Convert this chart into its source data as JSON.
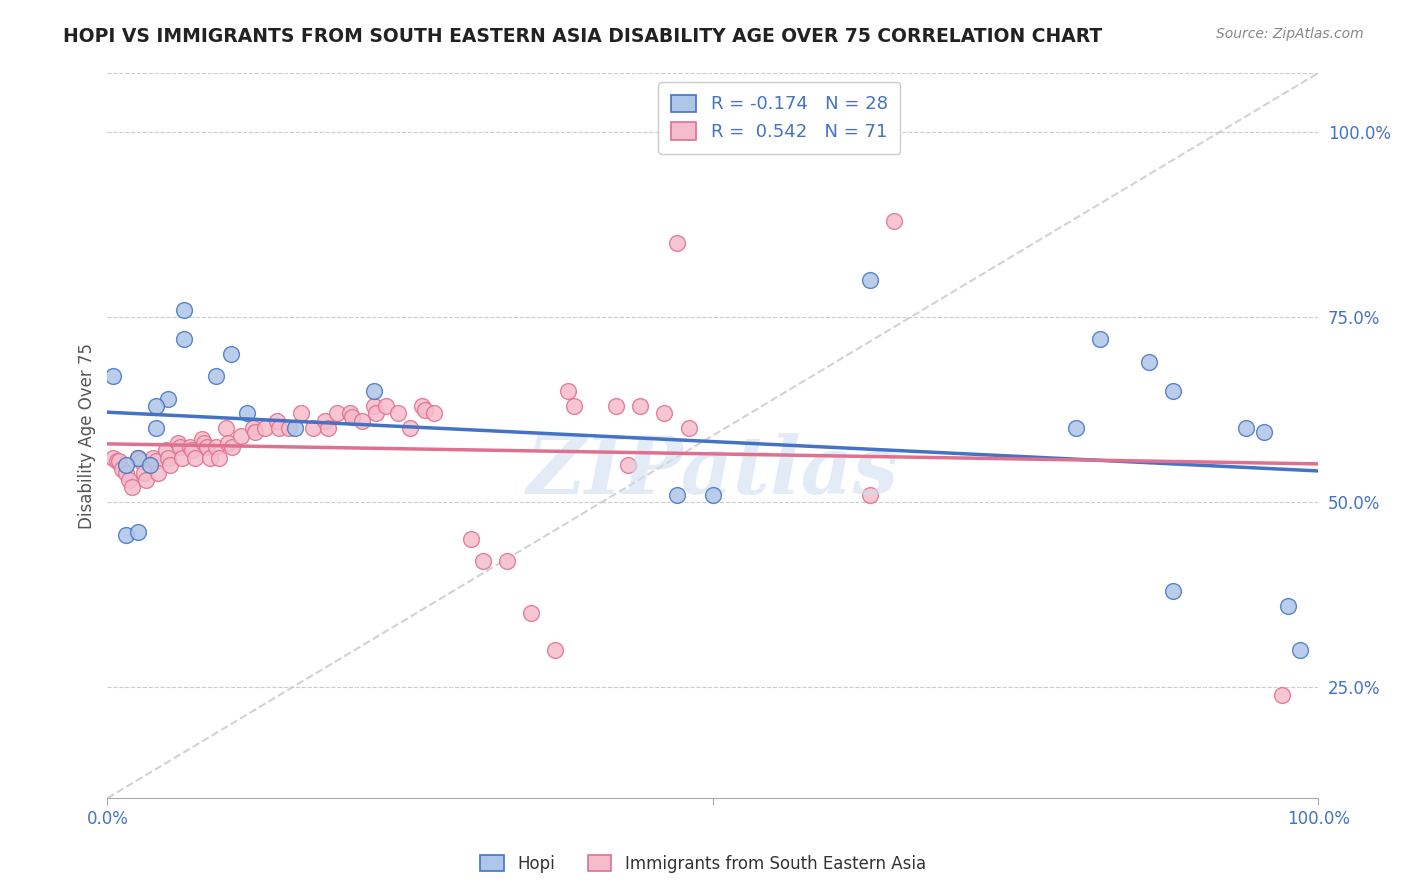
{
  "title": "HOPI VS IMMIGRANTS FROM SOUTH EASTERN ASIA DISABILITY AGE OVER 75 CORRELATION CHART",
  "source": "Source: ZipAtlas.com",
  "ylabel": "Disability Age Over 75",
  "legend_hopi": "Hopi",
  "legend_asia": "Immigrants from South Eastern Asia",
  "legend_r_hopi": "R = -0.174",
  "legend_n_hopi": "N = 28",
  "legend_r_asia": "R = 0.542",
  "legend_n_asia": "N = 71",
  "hopi_color": "#aec6e8",
  "asia_color": "#f5bccb",
  "hopi_edge_color": "#4472c4",
  "asia_edge_color": "#e07090",
  "hopi_line_color": "#4472c4",
  "asia_line_color": "#e07090",
  "diag_line_color": "#c8c8c8",
  "hopi_x": [
    0.005,
    0.063,
    0.102,
    0.063,
    0.09,
    0.05,
    0.04,
    0.025,
    0.015,
    0.035,
    0.115,
    0.155,
    0.22,
    0.47,
    0.5,
    0.015,
    0.025,
    0.04,
    0.8,
    0.82,
    0.86,
    0.88,
    0.63,
    0.94,
    0.88,
    0.955,
    0.975,
    0.985
  ],
  "hopi_y": [
    0.67,
    0.76,
    0.7,
    0.72,
    0.67,
    0.64,
    0.6,
    0.56,
    0.55,
    0.55,
    0.62,
    0.6,
    0.65,
    0.51,
    0.51,
    0.455,
    0.46,
    0.63,
    0.6,
    0.72,
    0.69,
    0.65,
    0.8,
    0.6,
    0.38,
    0.595,
    0.36,
    0.3
  ],
  "asia_x": [
    0.005,
    0.008,
    0.01,
    0.012,
    0.015,
    0.018,
    0.02,
    0.025,
    0.028,
    0.03,
    0.032,
    0.038,
    0.04,
    0.042,
    0.048,
    0.05,
    0.052,
    0.058,
    0.06,
    0.062,
    0.068,
    0.07,
    0.072,
    0.078,
    0.08,
    0.082,
    0.085,
    0.09,
    0.092,
    0.098,
    0.1,
    0.103,
    0.11,
    0.12,
    0.122,
    0.13,
    0.14,
    0.142,
    0.15,
    0.16,
    0.17,
    0.18,
    0.182,
    0.19,
    0.2,
    0.202,
    0.21,
    0.22,
    0.222,
    0.23,
    0.24,
    0.25,
    0.26,
    0.262,
    0.27,
    0.3,
    0.31,
    0.33,
    0.35,
    0.37,
    0.38,
    0.385,
    0.42,
    0.43,
    0.44,
    0.46,
    0.47,
    0.48,
    0.63,
    0.65,
    0.97
  ],
  "asia_y": [
    0.56,
    0.555,
    0.555,
    0.545,
    0.54,
    0.53,
    0.52,
    0.56,
    0.555,
    0.54,
    0.53,
    0.56,
    0.555,
    0.54,
    0.57,
    0.56,
    0.55,
    0.58,
    0.575,
    0.56,
    0.575,
    0.57,
    0.56,
    0.585,
    0.58,
    0.575,
    0.56,
    0.575,
    0.56,
    0.6,
    0.58,
    0.575,
    0.59,
    0.6,
    0.595,
    0.6,
    0.61,
    0.6,
    0.6,
    0.62,
    0.6,
    0.61,
    0.6,
    0.62,
    0.62,
    0.615,
    0.61,
    0.63,
    0.62,
    0.63,
    0.62,
    0.6,
    0.63,
    0.625,
    0.62,
    0.45,
    0.42,
    0.42,
    0.35,
    0.3,
    0.65,
    0.63,
    0.63,
    0.55,
    0.63,
    0.62,
    0.85,
    0.6,
    0.51,
    0.88,
    0.24
  ],
  "xlim": [
    0.0,
    1.0
  ],
  "ylim_min": 0.1,
  "ylim_max": 1.08,
  "ytick_positions": [
    0.25,
    0.5,
    0.75,
    1.0
  ],
  "ytick_labels": [
    "25.0%",
    "50.0%",
    "75.0%",
    "100.0%"
  ],
  "background_color": "#ffffff",
  "watermark_text": "ZIPatlas",
  "grid_color": "#cccccc",
  "text_color_blue": "#4472c4",
  "axis_label_color": "#555555"
}
